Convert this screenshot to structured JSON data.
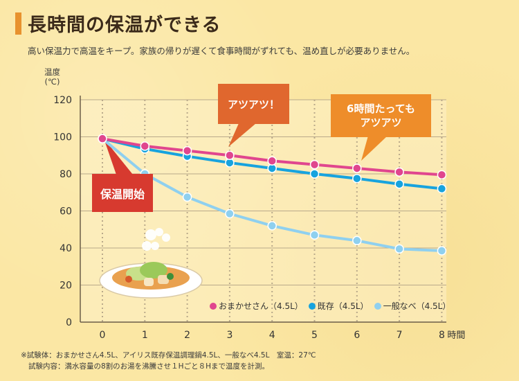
{
  "header": {
    "title": "長時間の保温ができる",
    "subtitle": "高い保温力で高温をキープ。家族の帰りが遅くて食事時間がずれても、温め直しが必要ありません。"
  },
  "callouts": {
    "start": "保温開始",
    "hot": "アツアツ！",
    "after6h_line1": "6時間たっても",
    "after6h_line2": "アツアツ"
  },
  "footnote": {
    "line1": "※試験体：おまかせさん4.5L、アイリス既存保温調理鍋4.5L、一般なべ4.5L　室温：27℃",
    "line2": "試験内容：満水容量の8割のお湯を沸騰させ１Hごと８Hまで温度を計測。"
  },
  "chart_data": {
    "type": "line",
    "ylabel_line1": "温度",
    "ylabel_line2": "(℃)",
    "xlabel": "時間",
    "x": [
      0,
      1,
      2,
      3,
      4,
      5,
      6,
      7,
      8
    ],
    "x_tick_labels": [
      "0",
      "1",
      "2",
      "3",
      "4",
      "5",
      "6",
      "7",
      "8"
    ],
    "ylim": [
      0,
      120
    ],
    "y_ticks": [
      0,
      20,
      40,
      60,
      80,
      100,
      120
    ],
    "grid": true,
    "legend_position": "bottom-right",
    "series": [
      {
        "name": "おまかせさん（4.5L）",
        "color": "#e0468e",
        "values": [
          99,
          95,
          92.5,
          90,
          87,
          85,
          83,
          81,
          79.5
        ]
      },
      {
        "name": "既存（4.5L）",
        "color": "#17a3de",
        "values": [
          99,
          93.5,
          89.5,
          86,
          83,
          80,
          77.5,
          74.5,
          72
        ]
      },
      {
        "name": "一般なべ（4.5L）",
        "color": "#8fd0ef",
        "values": [
          99,
          80,
          67.5,
          58.5,
          52,
          47,
          44,
          39.5,
          38.5
        ]
      }
    ]
  }
}
